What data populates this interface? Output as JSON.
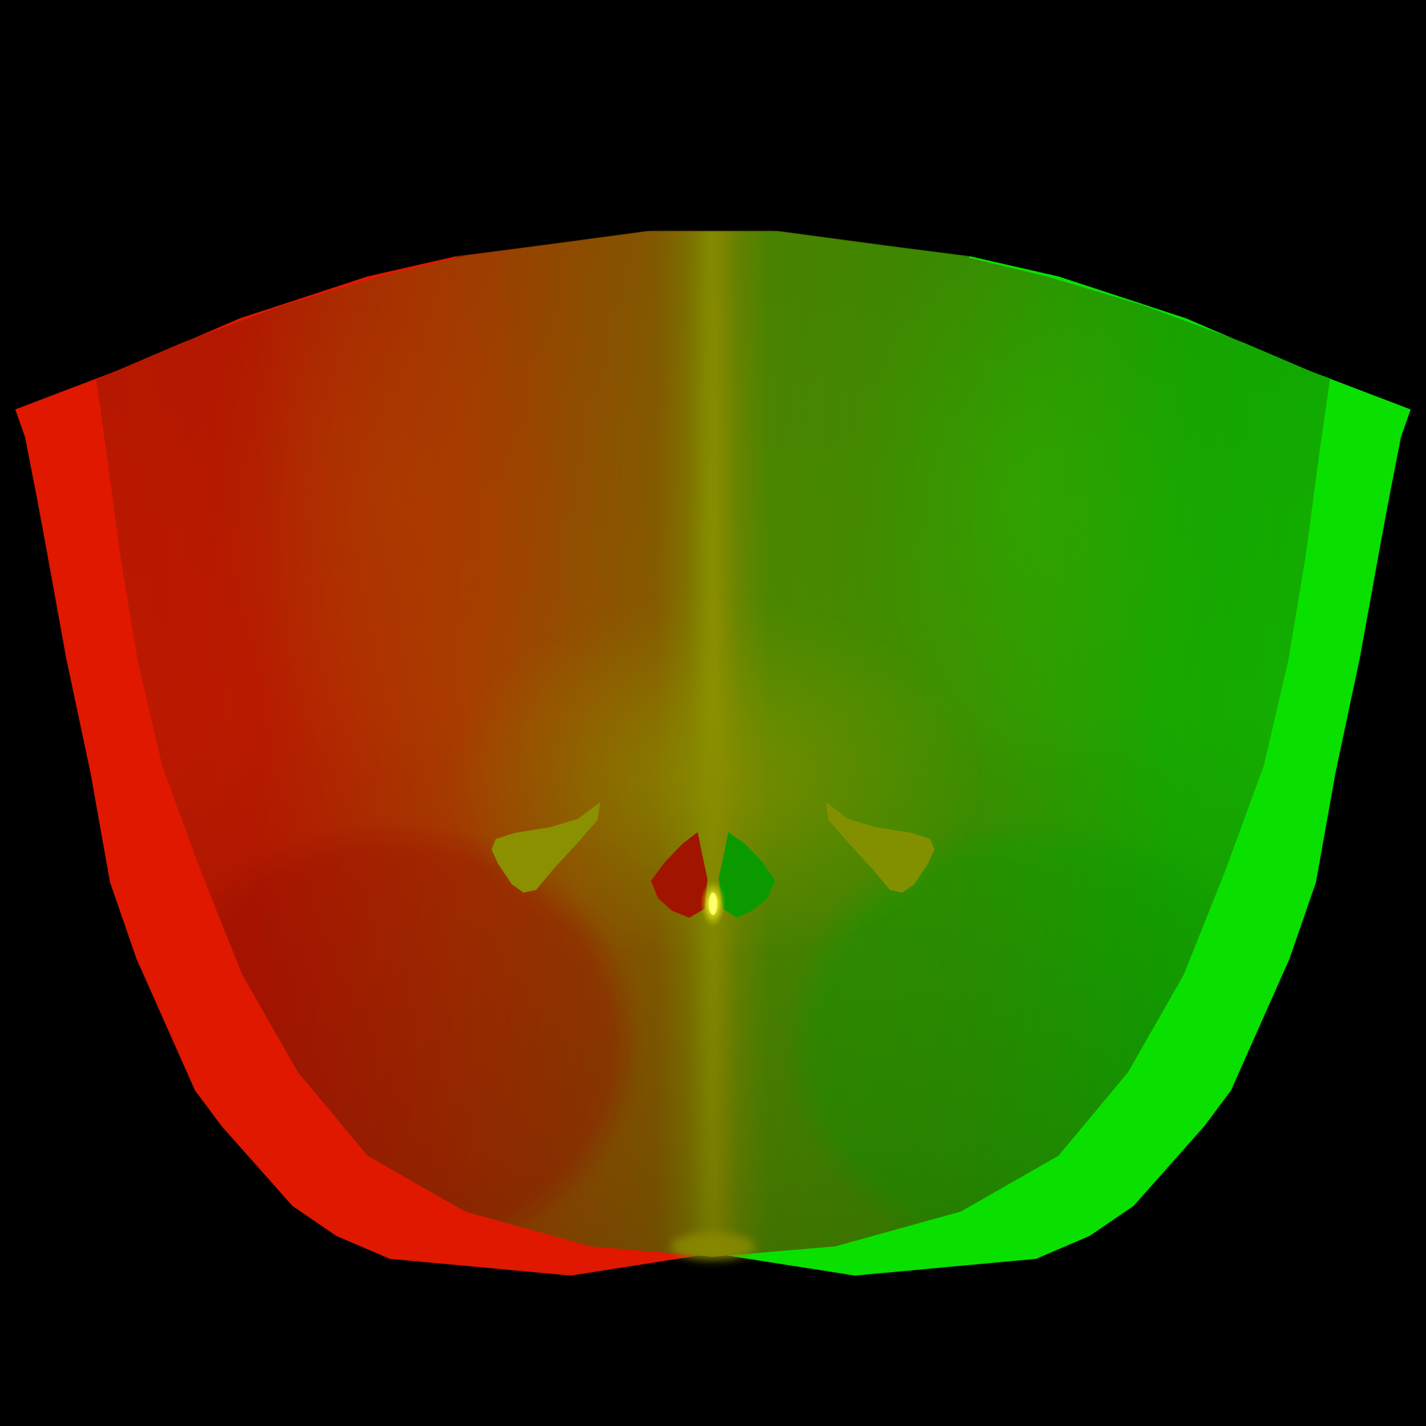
{
  "scene": {
    "background": "#000000",
    "colors": {
      "left_lobe": "#e01800",
      "left_inner": "#b01800",
      "left_mid": "#a83a00",
      "seam": "#808a00",
      "seam_glow": "#9aa000",
      "right_inner": "#0aa800",
      "right_mid": "#409000",
      "right_lobe": "#0ae000",
      "highlight": "#ffff40",
      "wing_fill": "#8a9200"
    }
  }
}
